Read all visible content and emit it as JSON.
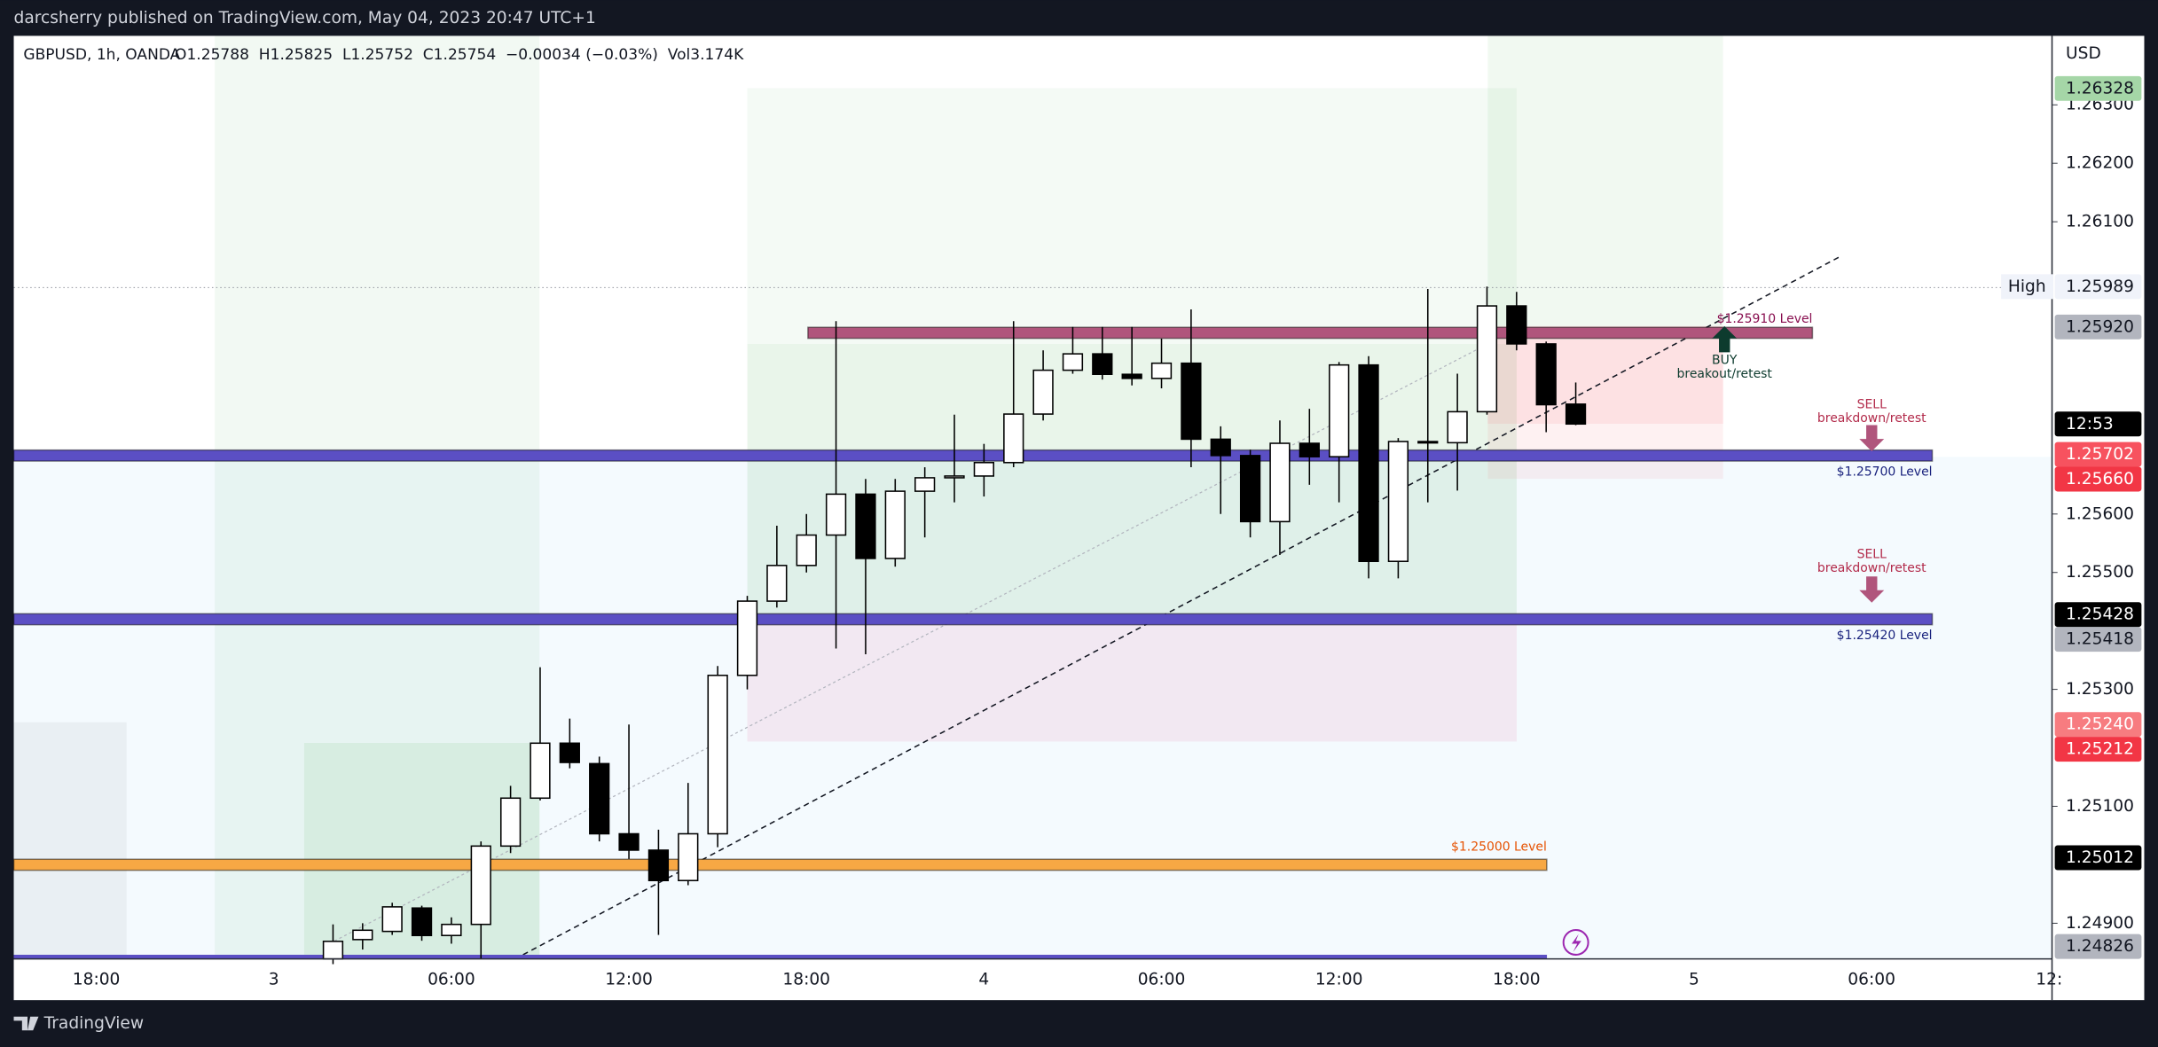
{
  "header": {
    "publisher": "darcsherry published on TradingView.com, May 04, 2023 20:47 UTC+1",
    "brand": "TradingView"
  },
  "chart_data": {
    "type": "candlestick",
    "legend": {
      "symbol": "GBPUSD, 1h, OANDA",
      "ohlc": "O1.25788  H1.25825  L1.25752  C1.25754  −0.00034 (−0.03%)  Vol3.174K"
    },
    "currency": "USD",
    "x": [
      2,
      3,
      4,
      5,
      6,
      7,
      8,
      9,
      10,
      11,
      12,
      13,
      14,
      15,
      16,
      17,
      18,
      19,
      20,
      21,
      22,
      23,
      24,
      25,
      26,
      27,
      28,
      29,
      30,
      31,
      32,
      33,
      34,
      35,
      36,
      37,
      38,
      39,
      40,
      41,
      42,
      43,
      44
    ],
    "open": [
      1.24839,
      1.24872,
      1.24886,
      1.24926,
      1.24879,
      1.24898,
      1.25032,
      1.25114,
      1.25208,
      1.25173,
      1.25053,
      1.25025,
      1.24973,
      1.25053,
      1.25324,
      1.25451,
      1.25512,
      1.25564,
      1.25634,
      1.25524,
      1.25639,
      1.25662,
      1.25665,
      1.25688,
      1.25771,
      1.25846,
      1.25874,
      1.25839,
      1.25832,
      1.25858,
      1.25728,
      1.257,
      1.25587,
      1.25721,
      1.25698,
      1.25855,
      1.25519,
      1.25724,
      1.25722,
      1.25775,
      1.25956,
      1.25891,
      1.25788
    ],
    "high": [
      1.24898,
      1.249,
      1.24935,
      1.2493,
      1.2491,
      1.2504,
      1.25135,
      1.25338,
      1.2525,
      1.25185,
      1.2524,
      1.2506,
      1.2514,
      1.2534,
      1.2546,
      1.2558,
      1.256,
      1.2593,
      1.2566,
      1.2566,
      1.2568,
      1.2577,
      1.2572,
      1.2593,
      1.2588,
      1.2592,
      1.2592,
      1.2592,
      1.259,
      1.2595,
      1.2575,
      1.2571,
      1.2576,
      1.2578,
      1.2586,
      1.2587,
      1.2573,
      1.25985,
      1.2584,
      1.25989,
      1.2598,
      1.25895,
      1.25825
    ],
    "low": [
      1.2483,
      1.24855,
      1.2488,
      1.2487,
      1.24865,
      1.2484,
      1.2502,
      1.2511,
      1.25165,
      1.2504,
      1.2501,
      1.2488,
      1.24965,
      1.2503,
      1.253,
      1.2544,
      1.255,
      1.2537,
      1.2536,
      1.2551,
      1.2556,
      1.2562,
      1.2563,
      1.2568,
      1.2576,
      1.2584,
      1.2583,
      1.2582,
      1.25815,
      1.2568,
      1.256,
      1.2556,
      1.2553,
      1.2565,
      1.2562,
      1.2549,
      1.2549,
      1.2562,
      1.2564,
      1.2577,
      1.2588,
      1.2574,
      1.25752
    ],
    "close": [
      1.24869,
      1.24888,
      1.24928,
      1.24879,
      1.24898,
      1.25032,
      1.25114,
      1.25208,
      1.25175,
      1.25053,
      1.25025,
      1.24973,
      1.25053,
      1.25324,
      1.25451,
      1.25512,
      1.25564,
      1.25634,
      1.25524,
      1.25639,
      1.25662,
      1.25665,
      1.25688,
      1.25771,
      1.25846,
      1.25874,
      1.25839,
      1.25832,
      1.25858,
      1.25728,
      1.257,
      1.25587,
      1.25721,
      1.25698,
      1.25855,
      1.25519,
      1.25724,
      1.25722,
      1.25775,
      1.25956,
      1.25891,
      1.25787,
      1.25754
    ],
    "up_color": "#ffffff",
    "down_color": "#000000",
    "xlim": [
      -8.79,
      60.05
    ],
    "xticks": [
      {
        "value": -6,
        "label": "18:00"
      },
      {
        "value": 0,
        "label": "3"
      },
      {
        "value": 6,
        "label": "06:00"
      },
      {
        "value": 12,
        "label": "12:00"
      },
      {
        "value": 18,
        "label": "18:00"
      },
      {
        "value": 24,
        "label": "4"
      },
      {
        "value": 30,
        "label": "06:00"
      },
      {
        "value": 36,
        "label": "12:00"
      },
      {
        "value": 42,
        "label": "18:00"
      },
      {
        "value": 48,
        "label": "5"
      },
      {
        "value": 54,
        "label": "06:00"
      },
      {
        "value": 60,
        "label": "12:"
      }
    ],
    "ylim": [
      1.24839,
      1.26418
    ],
    "yticks": [
      {
        "value": 1.263,
        "label": "1.26300"
      },
      {
        "value": 1.262,
        "label": "1.26200"
      },
      {
        "value": 1.261,
        "label": "1.26100"
      },
      {
        "value": 1.256,
        "label": "1.25600"
      },
      {
        "value": 1.255,
        "label": "1.25500"
      },
      {
        "value": 1.253,
        "label": "1.25300"
      },
      {
        "value": 1.251,
        "label": "1.25100"
      },
      {
        "value": 1.249,
        "label": "1.24900"
      }
    ],
    "grid": false,
    "price_tags": [
      {
        "value": 1.26328,
        "label": "1.26328",
        "color": "#a5d6a7",
        "text_color": "#131722"
      },
      {
        "value": 1.25989,
        "label": "1.25989",
        "title": "High",
        "color": "#f0f3fa",
        "text_color": "#131722"
      },
      {
        "value": 1.2592,
        "label": "1.25920",
        "color": "#b2b5be",
        "text_color": "#131722"
      },
      {
        "value": 1.25754,
        "label": "12:53",
        "color": "#000000",
        "text_color": "#ffffff"
      },
      {
        "value": 1.25702,
        "label": "1.25702",
        "color": "#f7525f",
        "text_color": "#ffffff"
      },
      {
        "value": 1.2566,
        "label": "1.25660",
        "color": "#f23645",
        "text_color": "#ffffff"
      },
      {
        "value": 1.25428,
        "label": "1.25428",
        "color": "#000000",
        "text_color": "#ffffff"
      },
      {
        "value": 1.25418,
        "label": "1.25418",
        "color": "#b2b5be",
        "text_color": "#131722"
      },
      {
        "value": 1.2524,
        "label": "1.25240",
        "color": "#f77c80",
        "text_color": "#ffffff"
      },
      {
        "value": 1.25212,
        "label": "1.25212",
        "color": "#f23645",
        "text_color": "#ffffff"
      },
      {
        "value": 1.25012,
        "label": "1.25012",
        "color": "#000000",
        "text_color": "#ffffff"
      },
      {
        "value": 1.24826,
        "label": "1.24826",
        "color": "#b2b5be",
        "text_color": "#131722"
      }
    ],
    "levels": [
      {
        "value": 1.2591,
        "label": "$1.25910 Level",
        "color": "#b0557c",
        "text_color": "#880e4f"
      },
      {
        "value": 1.257,
        "label": "$1.25700 Level",
        "color": "#5b4fc4",
        "text_color": "#1a237e"
      },
      {
        "value": 1.2542,
        "label": "$1.25420 Level",
        "color": "#5b4fc4",
        "text_color": "#1a237e"
      },
      {
        "value": 1.25,
        "label": "$1.25000 Level",
        "color": "#f7a844",
        "text_color": "#e65100"
      }
    ],
    "signals": [
      {
        "title": "BUY",
        "text": "breakout/retest"
      },
      {
        "title": "SELL",
        "text": "breakdown/retest"
      },
      {
        "title": "SELL",
        "text": "breakdown/retest"
      }
    ]
  }
}
